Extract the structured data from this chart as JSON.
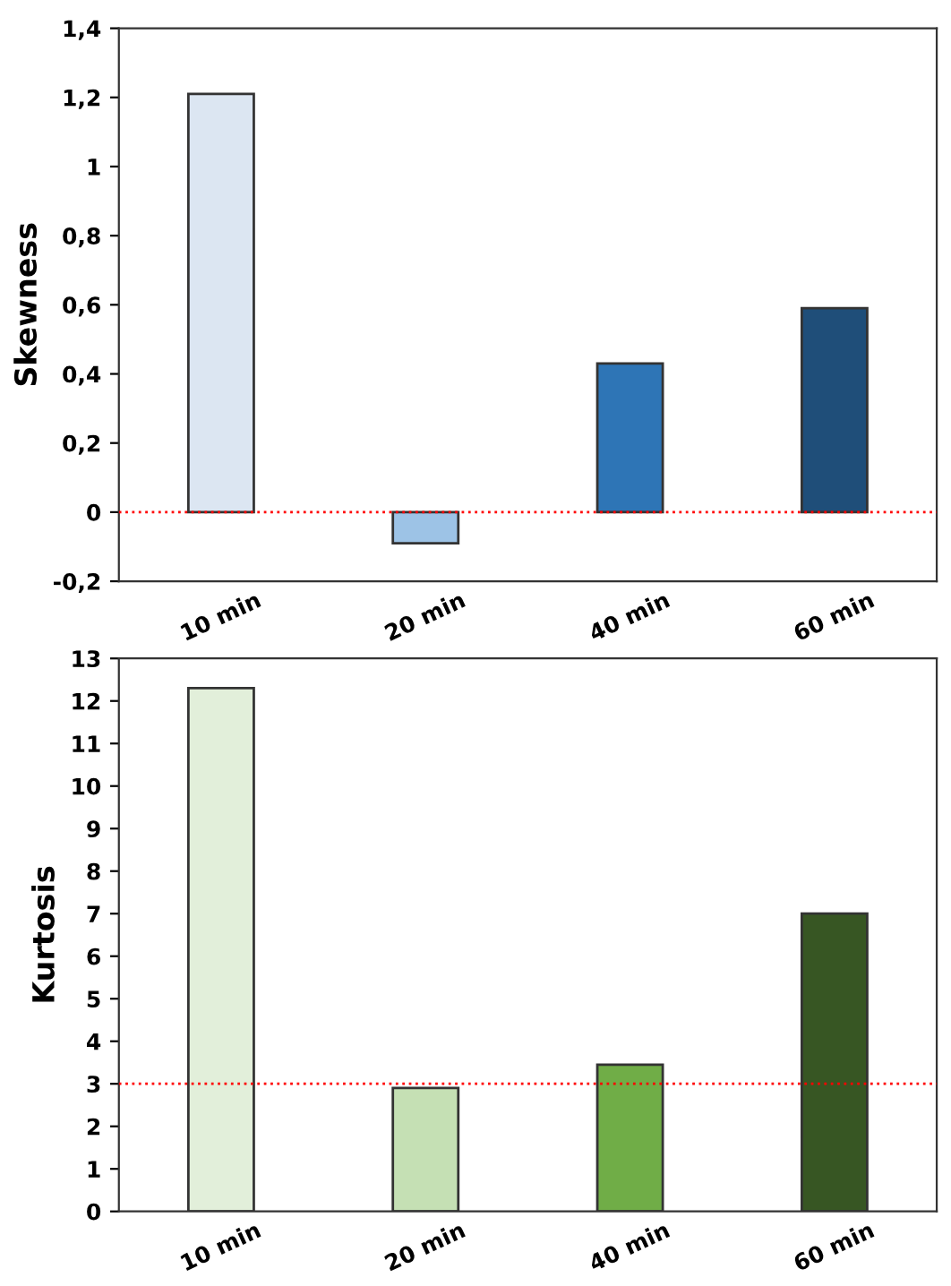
{
  "chart_data": [
    {
      "type": "bar",
      "ylabel": "Skewness",
      "categories": [
        "10 min",
        "20 min",
        "40 min",
        "60 min"
      ],
      "values": [
        1.21,
        -0.09,
        0.43,
        0.59
      ],
      "colors": [
        "#dce6f2",
        "#9dc3e6",
        "#2e75b6",
        "#1f4e79"
      ],
      "ylim": [
        -0.2,
        1.4
      ],
      "yticks": [
        {
          "value": -0.2,
          "label": "-0,2"
        },
        0,
        {
          "value": 0.2,
          "label": "0,2"
        },
        {
          "value": 0.4,
          "label": "0,4"
        },
        {
          "value": 0.6,
          "label": "0,6"
        },
        {
          "value": 0.8,
          "label": "0,8"
        },
        {
          "value": 1,
          "label": "1"
        },
        {
          "value": 1.2,
          "label": "1,2"
        },
        {
          "value": 1.4,
          "label": "1,4"
        }
      ],
      "ref_lines": [
        {
          "axis": "y",
          "value": 0,
          "color": "#ff0000",
          "line_style": "dotted"
        }
      ],
      "grid": false,
      "legend": false
    },
    {
      "type": "bar",
      "ylabel": "Kurtosis",
      "categories": [
        "10 min",
        "20 min",
        "40 min",
        "60 min"
      ],
      "values": [
        12.3,
        2.9,
        3.45,
        7.0
      ],
      "colors": [
        "#e2efda",
        "#c5e0b4",
        "#70ad47",
        "#375623"
      ],
      "ylim": [
        0,
        13
      ],
      "yticks": [
        0,
        1,
        2,
        3,
        4,
        5,
        6,
        7,
        8,
        9,
        10,
        11,
        12,
        13
      ],
      "ref_lines": [
        {
          "axis": "y",
          "value": 3,
          "color": "#ff0000",
          "line_style": "dotted"
        }
      ],
      "grid": false,
      "legend": false
    }
  ]
}
